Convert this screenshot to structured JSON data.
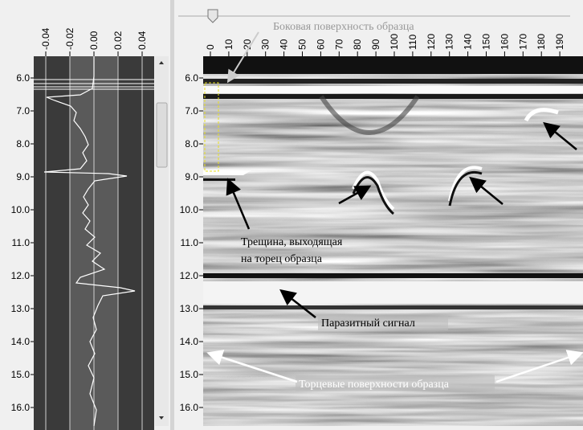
{
  "left_panel": {
    "amplitude_ticks": [
      "-0.04",
      "-0.02",
      "0.00",
      "0.02",
      "0.04"
    ],
    "depth_ticks": [
      "6.0",
      "7.0",
      "8.0",
      "9.0",
      "10.0",
      "11.0",
      "12.0",
      "13.0",
      "14.0",
      "15.0",
      "16.0"
    ]
  },
  "right_panel": {
    "distance_ticks": [
      "0",
      "10",
      "20",
      "30",
      "40",
      "50",
      "60",
      "70",
      "80",
      "90",
      "100",
      "110",
      "120",
      "130",
      "140",
      "150",
      "160",
      "170",
      "180",
      "190"
    ],
    "depth_ticks": [
      "6.0",
      "7.0",
      "8.0",
      "9.0",
      "10.0",
      "11.0",
      "12.0",
      "13.0",
      "14.0",
      "15.0",
      "16.0"
    ]
  },
  "annotations": {
    "side_surface": "Боковая поверхность образца",
    "crack": [
      "Трещина, выходящая",
      "на торец образца"
    ],
    "parasitic_signal": "Паразитный сигнал",
    "end_surfaces": "Торцевые поверхности образца"
  }
}
